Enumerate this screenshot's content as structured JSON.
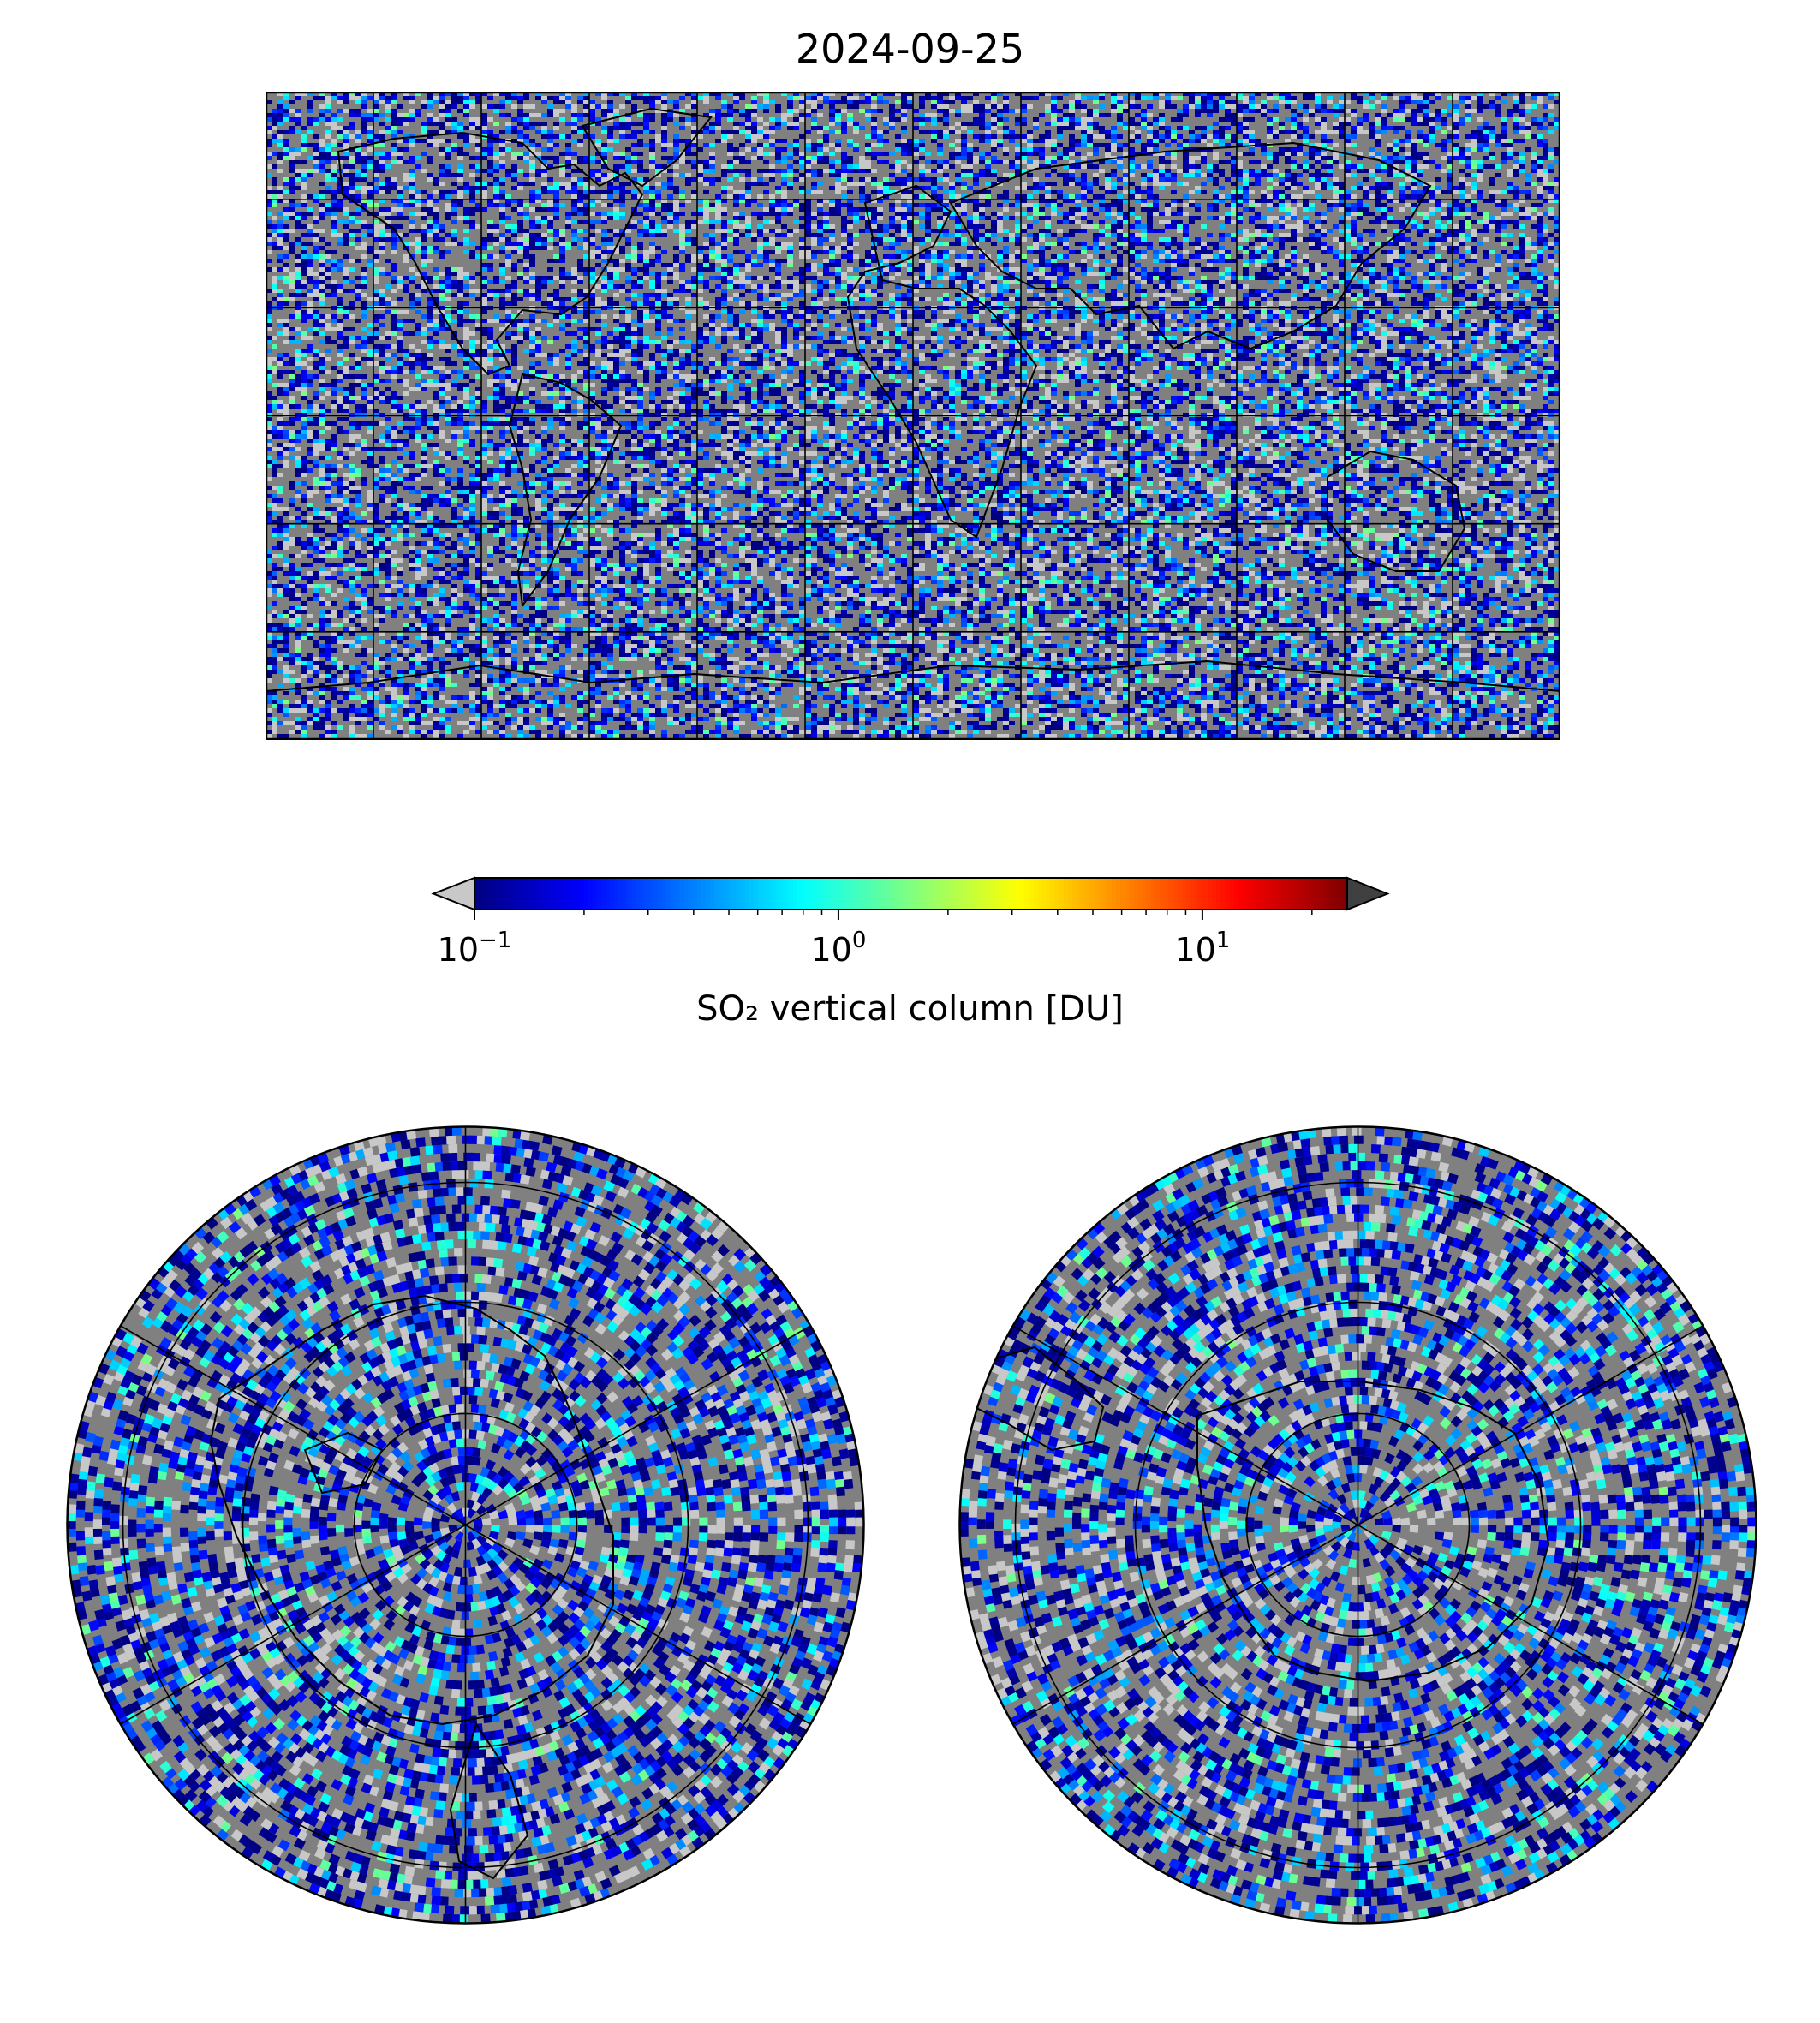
{
  "title": "2024-09-25",
  "colorbar": {
    "label": "SO₂ vertical column [DU]",
    "scale": "log",
    "range": [
      0.1,
      25
    ],
    "extend": "both",
    "under_color": "#c8c8c8",
    "over_color": "#404040",
    "colormap": "jet",
    "ticks": [
      {
        "value": 0.1,
        "base": "10",
        "exp": "−1"
      },
      {
        "value": 1,
        "base": "10",
        "exp": "0"
      },
      {
        "value": 10,
        "base": "10",
        "exp": "1"
      }
    ]
  },
  "map_background": "#808080",
  "world_map": {
    "projection": "plate-carree",
    "gridlines": true,
    "lon_lines": 12,
    "lat_lines": 6
  },
  "north_polar": {
    "projection": "north-polar-stereographic",
    "gridlines": true
  },
  "south_polar": {
    "projection": "south-polar-stereographic",
    "gridlines": true
  }
}
